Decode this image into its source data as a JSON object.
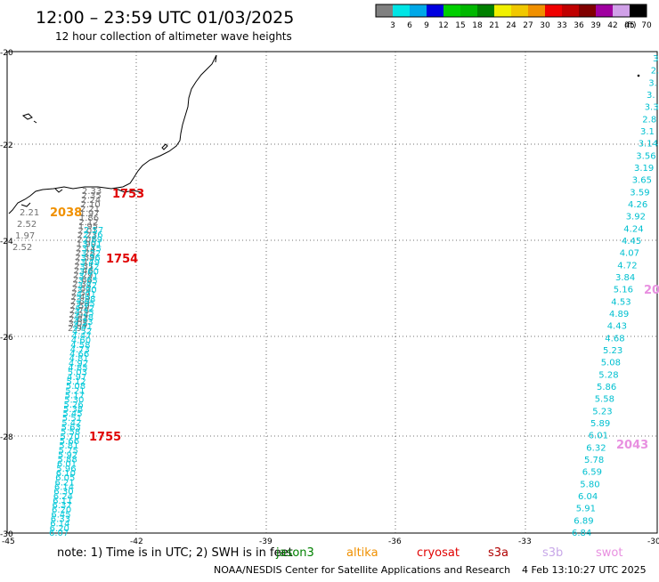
{
  "header": {
    "title": "12:00 – 23:59 UTC 01/03/2025",
    "subtitle": "12 hour collection of altimeter wave heights"
  },
  "legend": {
    "unit": "(ft)",
    "bins": [
      {
        "label": "3",
        "color": "#808080"
      },
      {
        "label": "6",
        "color": "#00e5e5"
      },
      {
        "label": "9",
        "color": "#00a8e8"
      },
      {
        "label": "12",
        "color": "#0000e0"
      },
      {
        "label": "15",
        "color": "#00d000"
      },
      {
        "label": "18",
        "color": "#00b800"
      },
      {
        "label": "21",
        "color": "#008000"
      },
      {
        "label": "24",
        "color": "#f0f000"
      },
      {
        "label": "27",
        "color": "#f0c800"
      },
      {
        "label": "30",
        "color": "#f09000"
      },
      {
        "label": "33",
        "color": "#f00000"
      },
      {
        "label": "36",
        "color": "#c00000"
      },
      {
        "label": "39",
        "color": "#800000"
      },
      {
        "label": "42",
        "color": "#a000a0"
      },
      {
        "label": "45",
        "color": "#d0a0e8"
      },
      {
        "label": "70",
        "color": "#000000"
      }
    ]
  },
  "axes": {
    "lon_labels": [
      "-45",
      "-42",
      "-39",
      "-36",
      "-33",
      "-30"
    ],
    "lat_labels": [
      "-20",
      "-22",
      "-24",
      "-26",
      "-28",
      "-30"
    ]
  },
  "footer": {
    "note": "note:  1) Time is in UTC; 2) SWH is in feet",
    "missions": [
      {
        "label": "jason3",
        "color": "#008000"
      },
      {
        "label": "altika",
        "color": "#f09000"
      },
      {
        "label": "cryosat",
        "color": "#e00000"
      },
      {
        "label": "s3a",
        "color": "#b00000"
      },
      {
        "label": "s3b",
        "color": "#c8a8e8"
      },
      {
        "label": "swot",
        "color": "#e890e0"
      }
    ],
    "credit": "NOAA/NESDIS Center for Satellite Applications and Research",
    "timestamp": "4 Feb 13:10:27 UTC 2025"
  },
  "time_labels": [
    {
      "text": "1753",
      "color": "#e00000"
    },
    {
      "text": "2038",
      "color": "#f09000"
    },
    {
      "text": "1754",
      "color": "#e00000"
    },
    {
      "text": "1755",
      "color": "#e00000"
    },
    {
      "text": "20",
      "color": "#e890e0"
    },
    {
      "text": "2043",
      "color": "#e890e0"
    }
  ],
  "swh_gray_left": [
    "2.21",
    "2.52",
    "1.97",
    "2.52"
  ],
  "track_right": [
    "3.",
    "2.",
    "3.",
    "3.",
    "3.3",
    "2.8",
    "3.1",
    "3.14",
    "3.56",
    "3.19",
    "3.65",
    "3.59",
    "4.26",
    "3.92",
    "4.24",
    "4.45",
    "4.07",
    "4.72",
    "3.84",
    "5.16",
    "4.53",
    "4.89",
    "4.43",
    "4.68",
    "5.23",
    "5.08",
    "5.28",
    "5.86",
    "5.58",
    "5.23",
    "5.89",
    "6.01",
    "6.32",
    "5.78",
    "6.59",
    "5.80",
    "6.04",
    "5.91",
    "6.89",
    "6.84"
  ],
  "track_left_gray": [
    "2.33",
    "2.35",
    "2.24",
    "2.10",
    "2.21",
    "1.97",
    "1.86",
    "2.12",
    "1.95",
    "2.01",
    "2.23",
    "2.05",
    "1.99",
    "2.14",
    "2.28",
    "2.39",
    "2.17",
    "2.31",
    "2.46",
    "2.29",
    "2.88",
    "2.37",
    "2.52",
    "2.57",
    "2.43",
    "2.63",
    "2.59",
    "2.78",
    "2.94",
    "2.84",
    "3.05",
    "2.97"
  ],
  "track_left_cyan": [
    "2.57",
    "2.76",
    "2.89",
    "3.01",
    "3.15",
    "3.22",
    "3.36",
    "3.49",
    "3.52",
    "3.60",
    "3.71",
    "3.65",
    "3.82",
    "3.90",
    "4.01",
    "3.88",
    "3.95",
    "4.12",
    "4.25",
    "4.18",
    "4.33",
    "4.41",
    "4.52",
    "4.47",
    "4.60",
    "4.58",
    "4.73",
    "4.66",
    "4.81",
    "4.92",
    "4.85",
    "5.03",
    "4.97",
    "5.12",
    "5.08",
    "5.21",
    "5.17",
    "5.30",
    "5.26",
    "5.38",
    "5.45",
    "5.51",
    "5.42",
    "5.63",
    "5.58",
    "5.70",
    "5.66",
    "5.81",
    "5.75",
    "5.92",
    "5.88",
    "6.01",
    "5.96",
    "6.10",
    "6.05",
    "6.21",
    "6.14",
    "6.30",
    "6.24",
    "6.11",
    "6.37",
    "6.20",
    "6.45",
    "6.33",
    "6.14",
    "6.20",
    "6.07"
  ]
}
